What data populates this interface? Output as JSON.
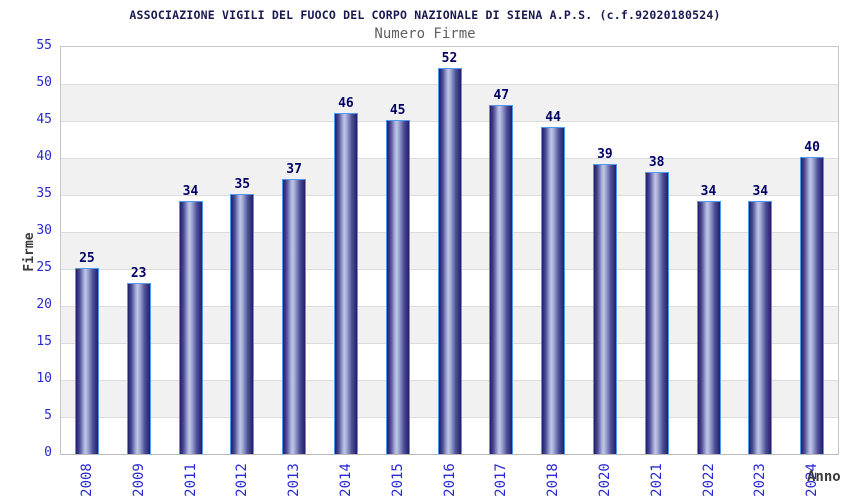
{
  "chart_data": {
    "type": "bar",
    "title": "ASSOCIAZIONE VIGILI DEL FUOCO DEL CORPO NAZIONALE DI SIENA A.P.S. (c.f.92020180524)",
    "subtitle": "Numero Firme",
    "xlabel": "Anno",
    "ylabel": "Firme",
    "categories": [
      "2008",
      "2009",
      "2011",
      "2012",
      "2013",
      "2014",
      "2015",
      "2016",
      "2017",
      "2018",
      "2020",
      "2021",
      "2022",
      "2023",
      "2024"
    ],
    "values": [
      25,
      23,
      34,
      35,
      37,
      46,
      45,
      52,
      47,
      44,
      39,
      38,
      34,
      34,
      40
    ],
    "ylim": [
      0,
      55
    ],
    "yticks": [
      0,
      5,
      10,
      15,
      20,
      25,
      30,
      35,
      40,
      45,
      50,
      55
    ],
    "grid": "horizontal",
    "band_pattern": "alternating light-gray bands between 50-45, 40-35, 30-25, 20-15, 10-5",
    "legend": "none",
    "colors": {
      "title": "#191952",
      "subtitle": "#606060",
      "tick_label": "#2929d4",
      "value_label": "#000066",
      "axis_title": "#3a3a3a",
      "bar_border": "#4f9aee",
      "bar_dark": "#1f1f6a",
      "bar_light": "#c1c7e6",
      "band_gray": "#f1f1f1",
      "gridline": "#dcdcdc",
      "plot_border": "#c6c6c6"
    }
  }
}
